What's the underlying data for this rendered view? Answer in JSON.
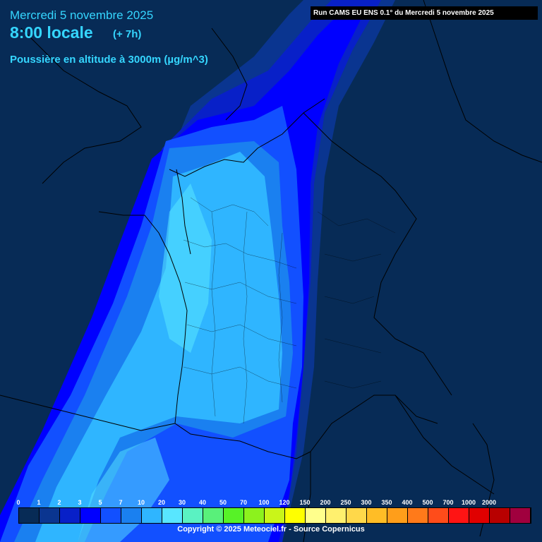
{
  "header": {
    "date": "Mercredi 5 novembre 2025",
    "time": "8:00 locale",
    "lead": "(+ 7h)",
    "parameter": "Poussière en altitude à 3000m (µg/m^3)"
  },
  "run_info": "Run CAMS EU ENS 0.1° du Mercredi 5 novembre 2025",
  "map": {
    "region": "France / Western Europe",
    "background_color": "#072b56",
    "land_border_color": "#000000"
  },
  "legend": {
    "ticks": [
      "0",
      "1",
      "2",
      "3",
      "5",
      "7",
      "10",
      "20",
      "30",
      "40",
      "50",
      "70",
      "100",
      "120",
      "150",
      "200",
      "250",
      "300",
      "350",
      "400",
      "500",
      "700",
      "1000",
      "2000"
    ],
    "colors": [
      "#072b56",
      "#0a3590",
      "#0820c8",
      "#0000ff",
      "#1250ff",
      "#1a80f0",
      "#2fb5ff",
      "#58e6ff",
      "#5af2c2",
      "#59f07a",
      "#57f227",
      "#8cf21d",
      "#c9f519",
      "#ffff00",
      "#ffff8c",
      "#fff06e",
      "#ffd84a",
      "#ffbd26",
      "#ff9e1a",
      "#ff7a1a",
      "#ff4c1a",
      "#ff1414",
      "#e00000",
      "#b80000",
      "#a0003e"
    ]
  },
  "copyright": "Copyright © 2025 Meteociel.fr - Source Copernicus"
}
